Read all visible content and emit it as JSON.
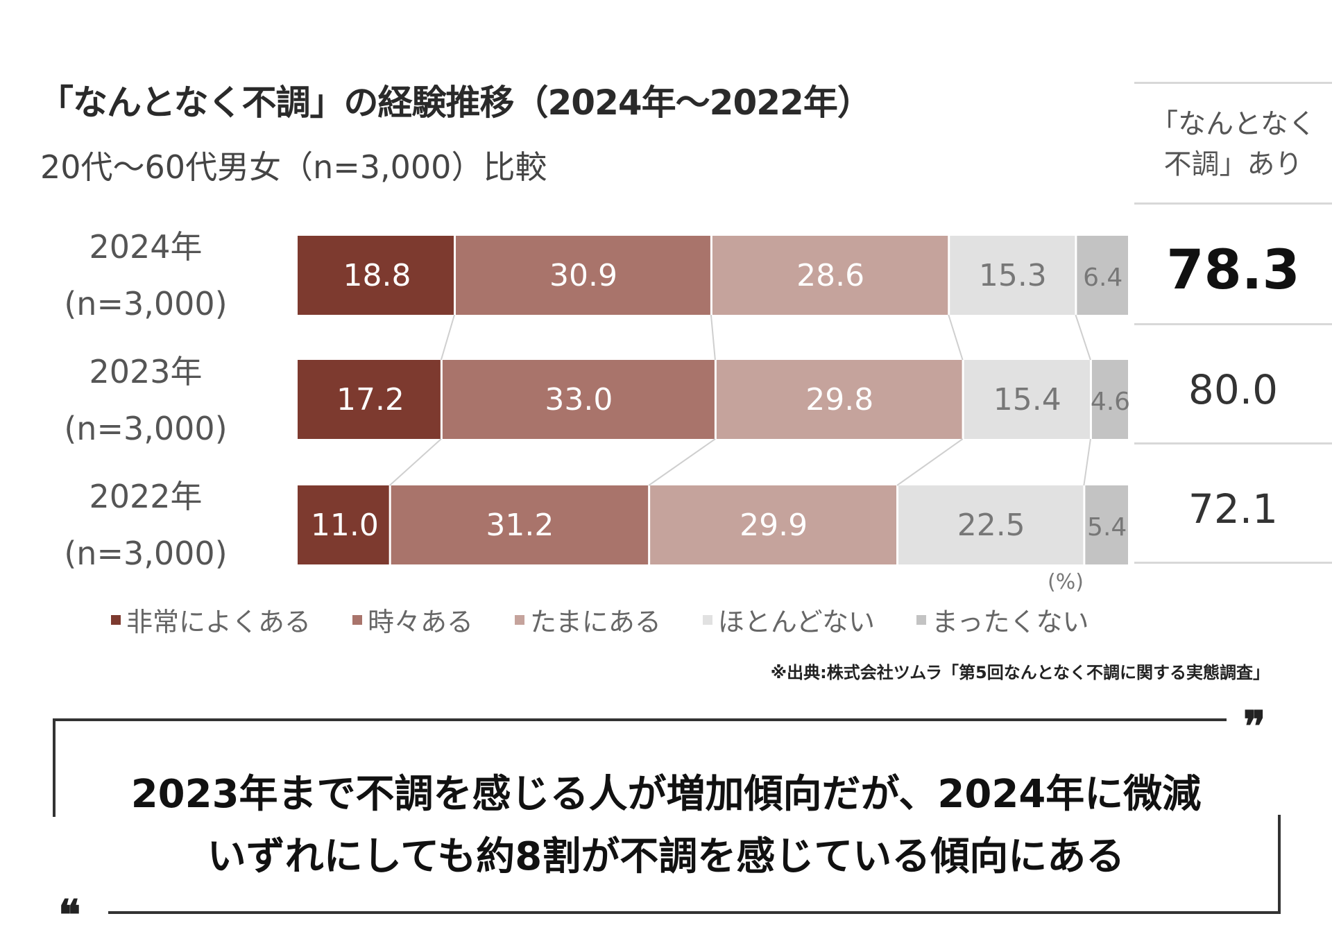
{
  "chart_data": {
    "type": "bar",
    "orientation": "horizontal-stacked-100",
    "title": "「なんとなく不調」の経験推移（2024年～2022年）",
    "subtitle": "20代～60代男女（n=3,000）比較",
    "unit_label": "(%)",
    "categories": [
      {
        "year": "2024年",
        "n": "(n=3,000)"
      },
      {
        "year": "2023年",
        "n": "(n=3,000)"
      },
      {
        "year": "2022年",
        "n": "(n=3,000)"
      }
    ],
    "series": [
      {
        "name": "非常によくある",
        "color": "#7d3a2f",
        "label_color": "#ffffff",
        "values": [
          18.8,
          17.2,
          11.0
        ]
      },
      {
        "name": "時々ある",
        "color": "#a9746b",
        "label_color": "#ffffff",
        "values": [
          30.9,
          33.0,
          31.2
        ]
      },
      {
        "name": "たまにある",
        "color": "#c5a39c",
        "label_color": "#ffffff",
        "values": [
          28.6,
          29.8,
          29.9
        ]
      },
      {
        "name": "ほとんどない",
        "color": "#e1e1e1",
        "label_color": "#777777",
        "values": [
          15.3,
          15.4,
          22.5
        ]
      },
      {
        "name": "まったくない",
        "color": "#c3c3c3",
        "label_color": "#777777",
        "values": [
          6.4,
          4.6,
          5.4
        ]
      }
    ],
    "value_labels": [
      [
        "18.8",
        "30.9",
        "28.6",
        "15.3",
        "6.4"
      ],
      [
        "17.2",
        "33.0",
        "29.8",
        "15.4",
        "4.6"
      ],
      [
        "11.0",
        "31.2",
        "29.9",
        "22.5",
        "5.4"
      ]
    ],
    "xlim": [
      0,
      100
    ],
    "legend": "bottom",
    "summary_column": {
      "header": [
        "「なんとなく",
        "不調」あり"
      ],
      "values": [
        "78.3",
        "80.0",
        "72.1"
      ]
    }
  },
  "source": "※出典:株式会社ツムラ「第5回なんとなく不調に関する実態調査」",
  "quote": {
    "line1": "2023年まで不調を感じる人が増加傾向だが、2024年に微減",
    "line2": "いずれにしても約8割が不調を感じている傾向にある",
    "open_mark": "❞",
    "close_mark": "❝"
  }
}
